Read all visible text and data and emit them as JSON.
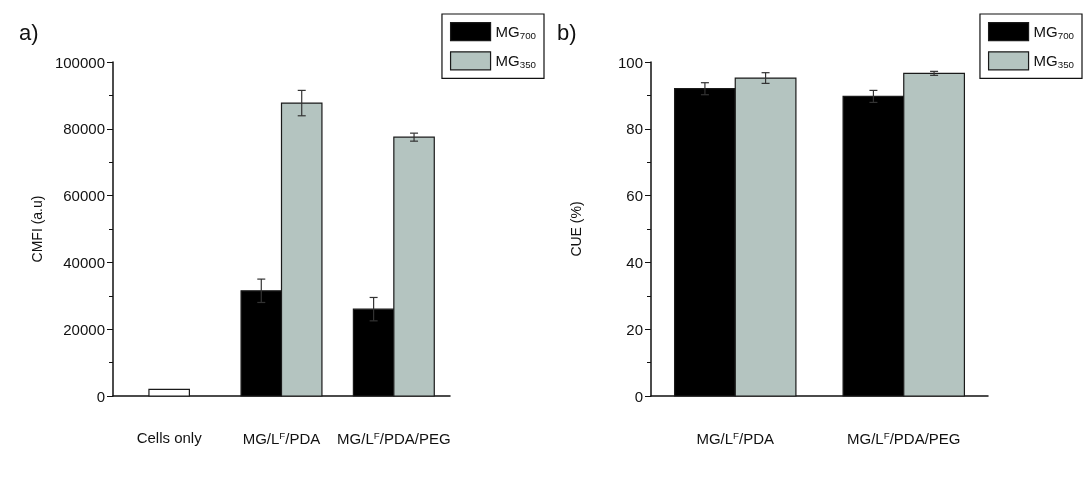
{
  "chart_data": [
    {
      "type": "bar",
      "title": "a)",
      "ylabel": "CMFI (a.u)",
      "categories": [
        "Cells only",
        "MG/L$^{F}$/PDA",
        "MG/L$^{F}$/PDA/PEG"
      ],
      "series": [
        {
          "name": "MG$_{700}$",
          "color": "#000000",
          "values": [
            null,
            31500,
            26000
          ],
          "errors": [
            null,
            3500,
            3500
          ]
        },
        {
          "name": "MG$_{350}$",
          "color": "#b4c4c0",
          "values": [
            null,
            87700,
            77500
          ],
          "errors": [
            null,
            3800,
            1200
          ]
        },
        {
          "color": "#ffffff",
          "values": [
            2000,
            null,
            null
          ]
        }
      ],
      "ylim": [
        0,
        100000
      ],
      "yticks": [
        0,
        20000,
        40000,
        60000,
        80000,
        100000
      ],
      "grid": false,
      "legend": "top right"
    },
    {
      "type": "bar",
      "title": "b)",
      "ylabel": "CUE (%)",
      "categories": [
        "MG/L$^{F}$/PDA",
        "MG/L$^{F}$/PDA/PEG"
      ],
      "series": [
        {
          "name": "MG$_{700}$",
          "color": "#000000",
          "values": [
            92,
            89.7
          ],
          "errors": [
            1.8,
            1.8
          ]
        },
        {
          "name": "MG$_{350}$",
          "color": "#b4c4c0",
          "values": [
            95.2,
            96.6
          ],
          "errors": [
            1.6,
            0.6
          ]
        }
      ],
      "ylim": [
        0,
        100
      ],
      "yticks": [
        0,
        20,
        40,
        60,
        80,
        100
      ],
      "grid": false,
      "legend": "top right"
    }
  ]
}
